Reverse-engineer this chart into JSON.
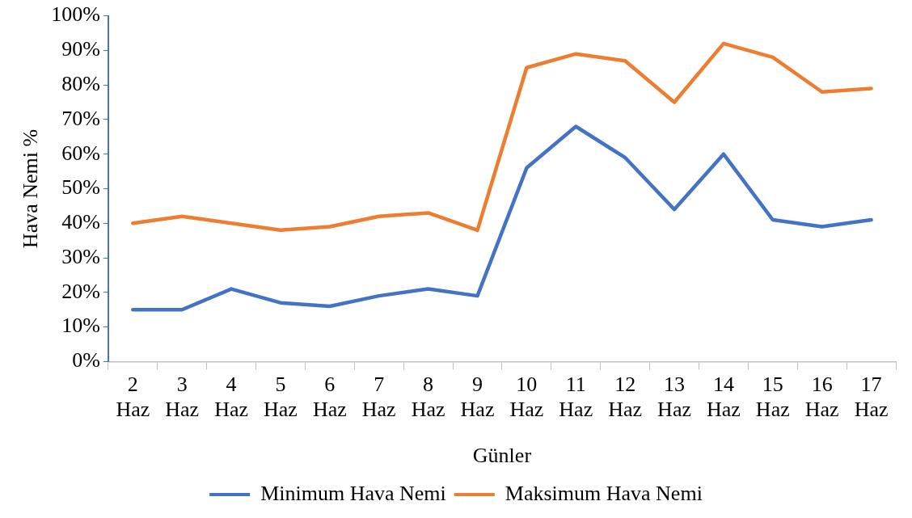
{
  "chart_data": {
    "type": "line",
    "xlabel": "Günler",
    "ylabel": "Hava Nemi %",
    "categories": [
      "2 Haz",
      "3 Haz",
      "4 Haz",
      "5 Haz",
      "6 Haz",
      "7 Haz",
      "8 Haz",
      "9 Haz",
      "10 Haz",
      "11 Haz",
      "12 Haz",
      "13 Haz",
      "14 Haz",
      "15 Haz",
      "16 Haz",
      "17 Haz"
    ],
    "series": [
      {
        "name": "Minimum Hava Nemi",
        "color": "#4472c4",
        "values": [
          15,
          15,
          21,
          17,
          16,
          19,
          21,
          19,
          56,
          68,
          59,
          44,
          60,
          41,
          39,
          41
        ]
      },
      {
        "name": "Maksimum Hava Nemi",
        "color": "#ed7d31",
        "values": [
          40,
          42,
          40,
          38,
          39,
          42,
          43,
          38,
          85,
          89,
          87,
          75,
          92,
          88,
          78,
          79
        ]
      }
    ],
    "ylim": [
      0,
      100
    ],
    "yticks": [
      {
        "value": 0,
        "label": "0%"
      },
      {
        "value": 10,
        "label": "10%"
      },
      {
        "value": 20,
        "label": "20%"
      },
      {
        "value": 30,
        "label": "30%"
      },
      {
        "value": 40,
        "label": "40%"
      },
      {
        "value": 50,
        "label": "50%"
      },
      {
        "value": 60,
        "label": "60%"
      },
      {
        "value": 70,
        "label": "70%"
      },
      {
        "value": 80,
        "label": "80%"
      },
      {
        "value": 90,
        "label": "90%"
      },
      {
        "value": 100,
        "label": "100%"
      }
    ],
    "grid": false,
    "legend": "bottom",
    "marker": "none",
    "line_style": "solid"
  }
}
